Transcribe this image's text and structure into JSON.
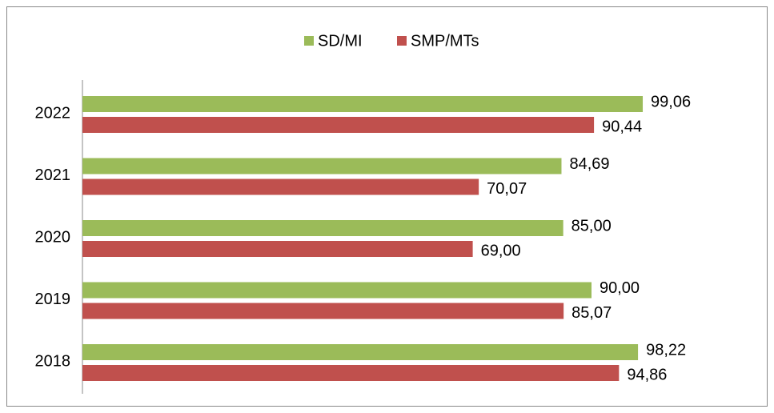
{
  "chart_data": {
    "type": "bar",
    "orientation": "horizontal",
    "categories": [
      "2018",
      "2019",
      "2020",
      "2021",
      "2022"
    ],
    "series": [
      {
        "name": "SD/MI",
        "color": "#9bbb59",
        "values": [
          98.22,
          90.0,
          85.0,
          84.69,
          99.06
        ],
        "value_labels": [
          "98,22",
          "90,00",
          "85,00",
          "84,69",
          "99,06"
        ]
      },
      {
        "name": "SMP/MTs",
        "color": "#c0504d",
        "values": [
          94.86,
          85.07,
          69.0,
          70.07,
          90.44
        ],
        "value_labels": [
          "94,86",
          "85,07",
          "69,00",
          "70,07",
          "90,44"
        ]
      }
    ],
    "xlim": [
      0,
      120
    ],
    "legend": "top"
  }
}
